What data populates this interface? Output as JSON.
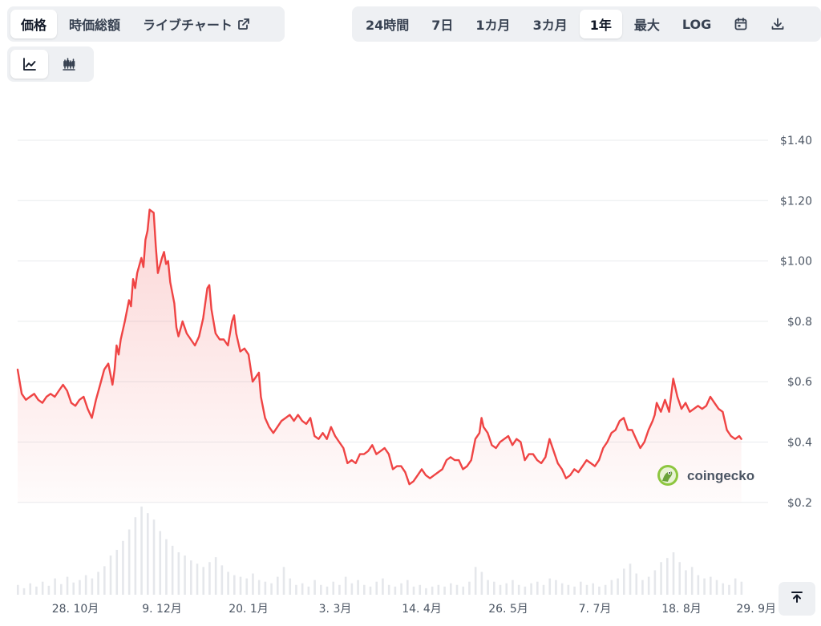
{
  "tabs_left": [
    {
      "label": "価格",
      "active": true
    },
    {
      "label": "時価総額",
      "active": false
    },
    {
      "label": "ライブチャート",
      "active": false,
      "icon": "external-link-icon"
    }
  ],
  "range_tabs": [
    {
      "label": "24時間",
      "active": false
    },
    {
      "label": "7日",
      "active": false
    },
    {
      "label": "1カ月",
      "active": false
    },
    {
      "label": "3カ月",
      "active": false
    },
    {
      "label": "1年",
      "active": true
    },
    {
      "label": "最大",
      "active": false
    },
    {
      "label": "LOG",
      "active": false
    }
  ],
  "range_icons": [
    "calendar-icon",
    "download-icon"
  ],
  "chart_types": [
    {
      "icon": "line-chart-icon",
      "active": true
    },
    {
      "icon": "candlestick-chart-icon",
      "active": false
    }
  ],
  "watermark": {
    "text": "coingecko",
    "icon": "coingecko-logo-icon"
  },
  "scroll_top_icon": "arrow-up-to-top-icon",
  "chart_data": {
    "type": "area",
    "series": [
      {
        "color": "#ef4444"
      }
    ],
    "y_ticks": [
      "$1.40",
      "$1.20",
      "$1.00",
      "$0.8",
      "$0.6",
      "$0.4",
      "$0.2"
    ],
    "y_tick_values": [
      1.4,
      1.2,
      1.0,
      0.8,
      0.6,
      0.4,
      0.2
    ],
    "ylim": [
      0.2,
      1.4
    ],
    "x_ticks": [
      "28. 10月",
      "9. 12月",
      "20. 1月",
      "3. 3月",
      "14. 4月",
      "26. 5月",
      "7. 7月",
      "18. 8月",
      "29. 9月"
    ],
    "x_tick_days": [
      28,
      70,
      112,
      154,
      196,
      238,
      280,
      322,
      364
    ],
    "x_start": "2023-09-30",
    "x_end": "2024-09-30",
    "points": [
      [
        0,
        0.64
      ],
      [
        2,
        0.56
      ],
      [
        4,
        0.54
      ],
      [
        6,
        0.55
      ],
      [
        8,
        0.56
      ],
      [
        10,
        0.54
      ],
      [
        12,
        0.53
      ],
      [
        14,
        0.55
      ],
      [
        16,
        0.56
      ],
      [
        18,
        0.55
      ],
      [
        20,
        0.57
      ],
      [
        22,
        0.59
      ],
      [
        24,
        0.57
      ],
      [
        26,
        0.53
      ],
      [
        28,
        0.52
      ],
      [
        30,
        0.54
      ],
      [
        32,
        0.55
      ],
      [
        34,
        0.51
      ],
      [
        36,
        0.48
      ],
      [
        38,
        0.54
      ],
      [
        40,
        0.59
      ],
      [
        42,
        0.64
      ],
      [
        44,
        0.66
      ],
      [
        46,
        0.59
      ],
      [
        47,
        0.64
      ],
      [
        48,
        0.72
      ],
      [
        49,
        0.69
      ],
      [
        50,
        0.74
      ],
      [
        52,
        0.8
      ],
      [
        54,
        0.87
      ],
      [
        55,
        0.85
      ],
      [
        56,
        0.94
      ],
      [
        57,
        0.91
      ],
      [
        58,
        0.96
      ],
      [
        60,
        1.01
      ],
      [
        61,
        0.98
      ],
      [
        62,
        1.07
      ],
      [
        63,
        1.1
      ],
      [
        64,
        1.17
      ],
      [
        66,
        1.16
      ],
      [
        67,
        1.05
      ],
      [
        68,
        0.96
      ],
      [
        70,
        1.01
      ],
      [
        71,
        1.03
      ],
      [
        72,
        0.99
      ],
      [
        73,
        1.0
      ],
      [
        74,
        0.93
      ],
      [
        76,
        0.86
      ],
      [
        77,
        0.78
      ],
      [
        78,
        0.75
      ],
      [
        80,
        0.8
      ],
      [
        82,
        0.76
      ],
      [
        84,
        0.74
      ],
      [
        86,
        0.72
      ],
      [
        88,
        0.75
      ],
      [
        90,
        0.81
      ],
      [
        92,
        0.91
      ],
      [
        93,
        0.92
      ],
      [
        94,
        0.84
      ],
      [
        96,
        0.76
      ],
      [
        98,
        0.74
      ],
      [
        100,
        0.74
      ],
      [
        102,
        0.72
      ],
      [
        104,
        0.8
      ],
      [
        105,
        0.82
      ],
      [
        106,
        0.76
      ],
      [
        108,
        0.7
      ],
      [
        110,
        0.71
      ],
      [
        112,
        0.69
      ],
      [
        114,
        0.6
      ],
      [
        116,
        0.62
      ],
      [
        117,
        0.63
      ],
      [
        118,
        0.55
      ],
      [
        120,
        0.48
      ],
      [
        122,
        0.45
      ],
      [
        124,
        0.43
      ],
      [
        126,
        0.45
      ],
      [
        128,
        0.47
      ],
      [
        130,
        0.48
      ],
      [
        132,
        0.49
      ],
      [
        134,
        0.47
      ],
      [
        136,
        0.49
      ],
      [
        138,
        0.47
      ],
      [
        140,
        0.46
      ],
      [
        142,
        0.48
      ],
      [
        144,
        0.42
      ],
      [
        146,
        0.41
      ],
      [
        148,
        0.43
      ],
      [
        150,
        0.41
      ],
      [
        152,
        0.45
      ],
      [
        154,
        0.42
      ],
      [
        156,
        0.4
      ],
      [
        158,
        0.38
      ],
      [
        160,
        0.33
      ],
      [
        162,
        0.34
      ],
      [
        164,
        0.33
      ],
      [
        166,
        0.36
      ],
      [
        168,
        0.36
      ],
      [
        170,
        0.37
      ],
      [
        172,
        0.39
      ],
      [
        174,
        0.36
      ],
      [
        176,
        0.37
      ],
      [
        178,
        0.38
      ],
      [
        180,
        0.36
      ],
      [
        182,
        0.31
      ],
      [
        184,
        0.32
      ],
      [
        186,
        0.32
      ],
      [
        188,
        0.3
      ],
      [
        190,
        0.26
      ],
      [
        192,
        0.27
      ],
      [
        194,
        0.29
      ],
      [
        196,
        0.31
      ],
      [
        198,
        0.29
      ],
      [
        200,
        0.28
      ],
      [
        202,
        0.29
      ],
      [
        204,
        0.3
      ],
      [
        206,
        0.31
      ],
      [
        208,
        0.34
      ],
      [
        210,
        0.35
      ],
      [
        212,
        0.34
      ],
      [
        214,
        0.34
      ],
      [
        216,
        0.31
      ],
      [
        218,
        0.32
      ],
      [
        220,
        0.34
      ],
      [
        222,
        0.41
      ],
      [
        224,
        0.43
      ],
      [
        225,
        0.48
      ],
      [
        226,
        0.45
      ],
      [
        228,
        0.43
      ],
      [
        230,
        0.39
      ],
      [
        232,
        0.38
      ],
      [
        234,
        0.4
      ],
      [
        236,
        0.41
      ],
      [
        238,
        0.42
      ],
      [
        240,
        0.39
      ],
      [
        242,
        0.41
      ],
      [
        244,
        0.4
      ],
      [
        246,
        0.34
      ],
      [
        248,
        0.36
      ],
      [
        250,
        0.36
      ],
      [
        252,
        0.34
      ],
      [
        254,
        0.33
      ],
      [
        256,
        0.35
      ],
      [
        258,
        0.41
      ],
      [
        260,
        0.37
      ],
      [
        262,
        0.33
      ],
      [
        264,
        0.31
      ],
      [
        266,
        0.28
      ],
      [
        268,
        0.29
      ],
      [
        270,
        0.31
      ],
      [
        272,
        0.3
      ],
      [
        274,
        0.32
      ],
      [
        276,
        0.34
      ],
      [
        278,
        0.33
      ],
      [
        280,
        0.32
      ],
      [
        282,
        0.34
      ],
      [
        284,
        0.38
      ],
      [
        286,
        0.4
      ],
      [
        288,
        0.43
      ],
      [
        290,
        0.44
      ],
      [
        292,
        0.47
      ],
      [
        294,
        0.48
      ],
      [
        296,
        0.44
      ],
      [
        298,
        0.44
      ],
      [
        300,
        0.41
      ],
      [
        302,
        0.38
      ],
      [
        304,
        0.4
      ],
      [
        306,
        0.44
      ],
      [
        308,
        0.47
      ],
      [
        309,
        0.49
      ],
      [
        310,
        0.53
      ],
      [
        312,
        0.5
      ],
      [
        314,
        0.54
      ],
      [
        316,
        0.5
      ],
      [
        318,
        0.61
      ],
      [
        320,
        0.55
      ],
      [
        322,
        0.51
      ],
      [
        324,
        0.53
      ],
      [
        326,
        0.5
      ],
      [
        328,
        0.51
      ],
      [
        330,
        0.52
      ],
      [
        332,
        0.51
      ],
      [
        334,
        0.52
      ],
      [
        336,
        0.55
      ],
      [
        338,
        0.53
      ],
      [
        340,
        0.51
      ],
      [
        342,
        0.5
      ],
      [
        344,
        0.44
      ],
      [
        346,
        0.42
      ],
      [
        348,
        0.41
      ],
      [
        350,
        0.42
      ],
      [
        351,
        0.41
      ]
    ],
    "volume": [
      [
        0,
        12
      ],
      [
        3,
        8
      ],
      [
        6,
        14
      ],
      [
        9,
        10
      ],
      [
        12,
        16
      ],
      [
        15,
        11
      ],
      [
        18,
        20
      ],
      [
        21,
        13
      ],
      [
        24,
        22
      ],
      [
        27,
        15
      ],
      [
        30,
        18
      ],
      [
        33,
        24
      ],
      [
        36,
        20
      ],
      [
        39,
        28
      ],
      [
        42,
        35
      ],
      [
        45,
        48
      ],
      [
        48,
        55
      ],
      [
        51,
        66
      ],
      [
        54,
        80
      ],
      [
        57,
        95
      ],
      [
        60,
        108
      ],
      [
        63,
        100
      ],
      [
        66,
        92
      ],
      [
        69,
        78
      ],
      [
        72,
        68
      ],
      [
        75,
        60
      ],
      [
        78,
        52
      ],
      [
        81,
        48
      ],
      [
        84,
        42
      ],
      [
        87,
        38
      ],
      [
        90,
        34
      ],
      [
        93,
        40
      ],
      [
        96,
        46
      ],
      [
        99,
        36
      ],
      [
        102,
        28
      ],
      [
        105,
        24
      ],
      [
        108,
        22
      ],
      [
        111,
        20
      ],
      [
        114,
        26
      ],
      [
        117,
        18
      ],
      [
        120,
        16
      ],
      [
        123,
        14
      ],
      [
        126,
        22
      ],
      [
        129,
        34
      ],
      [
        132,
        20
      ],
      [
        135,
        12
      ],
      [
        138,
        14
      ],
      [
        141,
        10
      ],
      [
        144,
        18
      ],
      [
        147,
        12
      ],
      [
        150,
        10
      ],
      [
        153,
        16
      ],
      [
        156,
        12
      ],
      [
        159,
        22
      ],
      [
        162,
        14
      ],
      [
        165,
        18
      ],
      [
        168,
        12
      ],
      [
        171,
        10
      ],
      [
        174,
        16
      ],
      [
        177,
        20
      ],
      [
        180,
        12
      ],
      [
        183,
        10
      ],
      [
        186,
        14
      ],
      [
        189,
        18
      ],
      [
        192,
        10
      ],
      [
        195,
        12
      ],
      [
        198,
        8
      ],
      [
        201,
        10
      ],
      [
        204,
        12
      ],
      [
        207,
        10
      ],
      [
        210,
        14
      ],
      [
        213,
        12
      ],
      [
        216,
        10
      ],
      [
        219,
        16
      ],
      [
        222,
        34
      ],
      [
        225,
        28
      ],
      [
        228,
        18
      ],
      [
        231,
        16
      ],
      [
        234,
        12
      ],
      [
        237,
        14
      ],
      [
        240,
        18
      ],
      [
        243,
        12
      ],
      [
        246,
        10
      ],
      [
        249,
        14
      ],
      [
        252,
        16
      ],
      [
        255,
        12
      ],
      [
        258,
        20
      ],
      [
        261,
        18
      ],
      [
        264,
        14
      ],
      [
        267,
        12
      ],
      [
        270,
        10
      ],
      [
        273,
        16
      ],
      [
        276,
        12
      ],
      [
        279,
        14
      ],
      [
        282,
        10
      ],
      [
        285,
        12
      ],
      [
        288,
        18
      ],
      [
        291,
        20
      ],
      [
        294,
        32
      ],
      [
        297,
        38
      ],
      [
        300,
        26
      ],
      [
        303,
        18
      ],
      [
        306,
        22
      ],
      [
        309,
        30
      ],
      [
        312,
        40
      ],
      [
        315,
        45
      ],
      [
        318,
        52
      ],
      [
        321,
        40
      ],
      [
        324,
        30
      ],
      [
        327,
        34
      ],
      [
        330,
        24
      ],
      [
        333,
        20
      ],
      [
        336,
        22
      ],
      [
        339,
        18
      ],
      [
        342,
        14
      ],
      [
        345,
        12
      ],
      [
        348,
        20
      ],
      [
        351,
        16
      ]
    ]
  }
}
